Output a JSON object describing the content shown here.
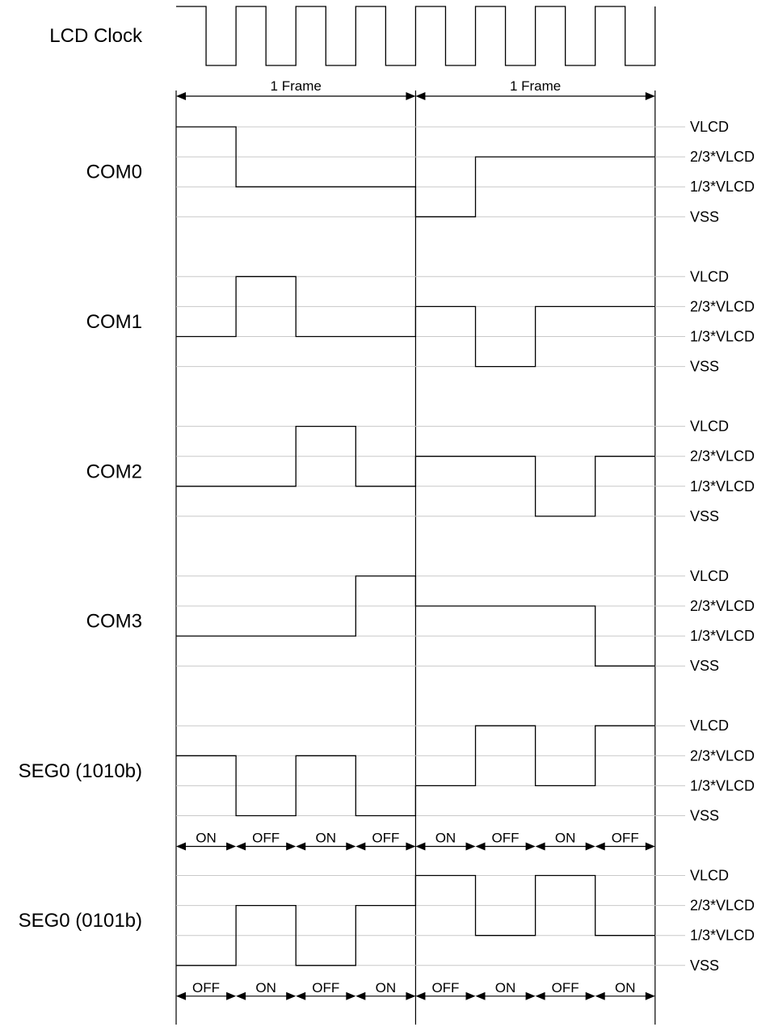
{
  "clock": {
    "label": "LCD Clock",
    "periods": 8
  },
  "frame_label": "1 Frame",
  "levels": [
    "VLCD",
    "2/3*VLCD",
    "1/3*VLCD",
    "VSS"
  ],
  "signals": [
    {
      "name": "COM0",
      "values": [
        3,
        1,
        1,
        1,
        0,
        2,
        2,
        2
      ]
    },
    {
      "name": "COM1",
      "values": [
        1,
        3,
        1,
        1,
        2,
        0,
        2,
        2
      ]
    },
    {
      "name": "COM2",
      "values": [
        1,
        1,
        3,
        1,
        2,
        2,
        0,
        2
      ]
    },
    {
      "name": "COM3",
      "values": [
        1,
        1,
        1,
        3,
        2,
        2,
        2,
        0
      ]
    },
    {
      "name": "SEG0 (1010b)",
      "values": [
        2,
        0,
        2,
        0,
        1,
        3,
        1,
        3
      ],
      "states": [
        "ON",
        "OFF",
        "ON",
        "OFF",
        "ON",
        "OFF",
        "ON",
        "OFF"
      ]
    },
    {
      "name": "SEG0 (0101b)",
      "values": [
        0,
        2,
        0,
        2,
        3,
        1,
        3,
        1
      ],
      "states": [
        "OFF",
        "ON",
        "OFF",
        "ON",
        "OFF",
        "ON",
        "OFF",
        "ON"
      ]
    }
  ]
}
